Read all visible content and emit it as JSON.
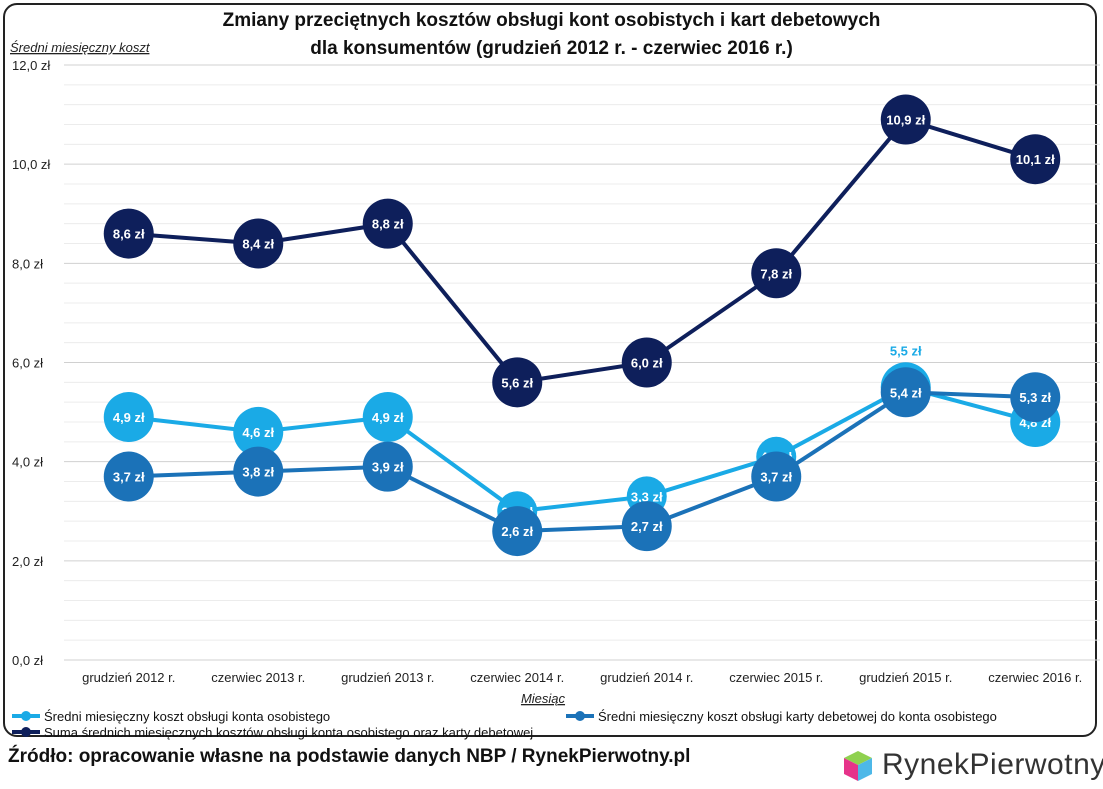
{
  "chart_data": {
    "type": "line",
    "title": "Zmiany przeciętnych kosztów obsługi kont osobistych i kart debetowych dla konsumentów (grudzień 2012 r. - czerwiec 2016 r.)",
    "title_lines": [
      "Zmiany przeciętnych kosztów obsługi kont osobistych i kart debetowych",
      "dla konsumentów (grudzień 2012 r. - czerwiec 2016 r.)"
    ],
    "xlabel": "Miesiąc",
    "ylabel": "Średni miesięczny koszt",
    "ylim": [
      0,
      12
    ],
    "yticks": [
      "0,0 zł",
      "2,0 zł",
      "4,0 zł",
      "6,0 zł",
      "8,0 zł",
      "10,0 zł",
      "12,0 zł"
    ],
    "grid": true,
    "legend_placement": "bottom",
    "categories": [
      "grudzień 2012 r.",
      "czerwiec 2013 r.",
      "grudzień 2013 r.",
      "czerwiec 2014 r.",
      "grudzień 2014 r.",
      "czerwiec 2015 r.",
      "grudzień 2015 r.",
      "czerwiec 2016 r."
    ],
    "series": [
      {
        "name": "Średni miesięczny koszt obsługi konta osobistego",
        "color": "#1aaae6",
        "values": [
          4.9,
          4.6,
          4.9,
          3.0,
          3.3,
          4.1,
          5.5,
          4.8
        ],
        "labels": [
          "4,9 zł",
          "4,6 zł",
          "4,9 zł",
          "3,0 zł",
          "3,3 zł",
          "4,1 zł",
          "5,5 zł",
          "4,8 zł"
        ]
      },
      {
        "name": "Średni miesięczny koszt obsługi karty debetowej do konta osobistego",
        "color": "#1b72b8",
        "values": [
          3.7,
          3.8,
          3.9,
          2.6,
          2.7,
          3.7,
          5.4,
          5.3
        ],
        "labels": [
          "3,7 zł",
          "3,8 zł",
          "3,9 zł",
          "2,6 zł",
          "2,7 zł",
          "3,7 zł",
          "5,4 zł",
          "5,3 zł"
        ]
      },
      {
        "name": "Suma średnich miesięcznych kosztów obsługi konta osobistego oraz karty debetowej",
        "color": "#0e1f5b",
        "values": [
          8.6,
          8.4,
          8.8,
          5.6,
          6.0,
          7.8,
          10.9,
          10.1
        ],
        "labels": [
          "8,6 zł",
          "8,4 zł",
          "8,8 zł",
          "5,6 zł",
          "6,0 zł",
          "7,8 zł",
          "10,9 zł",
          "10,1 zł"
        ]
      }
    ]
  },
  "source": "Źródło: opracowanie własne na podstawie danych NBP / RynekPierwotny.pl",
  "logo": "RynekPierwotny"
}
